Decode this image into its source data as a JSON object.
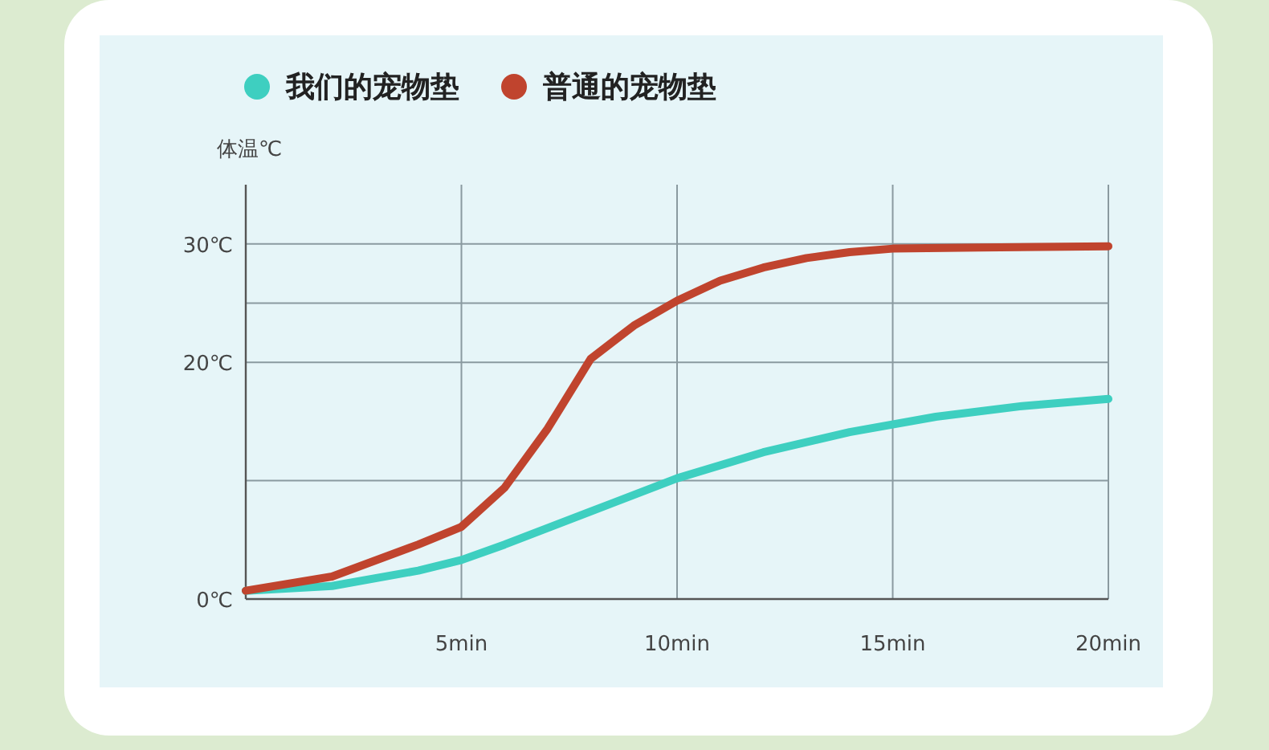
{
  "chart_data": {
    "type": "line",
    "ylabel": "体温℃",
    "x": [
      0,
      2,
      4,
      5,
      6,
      7,
      8,
      9,
      10,
      11,
      12,
      13,
      14,
      15,
      17,
      20
    ],
    "series": [
      {
        "name": "我们的宠物垫",
        "color": "#3ecfc0",
        "x": [
          0,
          2,
          4,
          5,
          6,
          8,
          10,
          12,
          14,
          16,
          18,
          20
        ],
        "values": [
          0.7,
          1.1,
          2.4,
          3.3,
          4.6,
          7.4,
          10.2,
          12.4,
          14.1,
          15.4,
          16.3,
          16.9
        ]
      },
      {
        "name": "普通的宠物垫",
        "color": "#c0442e",
        "values": [
          0.7,
          1.9,
          4.6,
          6.1,
          9.4,
          14.4,
          20.3,
          23.1,
          25.2,
          26.9,
          28.0,
          28.8,
          29.3,
          29.6,
          29.7,
          29.8
        ]
      }
    ],
    "xlim": [
      0,
      20
    ],
    "xticks": [
      {
        "value": 5,
        "label": "5min"
      },
      {
        "value": 10,
        "label": "10min"
      },
      {
        "value": 15,
        "label": "15min"
      },
      {
        "value": 20,
        "label": "20min"
      }
    ],
    "ylim": [
      0,
      35
    ],
    "yticks": [
      {
        "value": 0,
        "label": "0℃"
      },
      {
        "value": 10,
        "label": null
      },
      {
        "value": 20,
        "label": "20℃"
      },
      {
        "value": 25,
        "label": null
      },
      {
        "value": 30,
        "label": "30℃"
      }
    ],
    "grid": true,
    "legend": "top"
  }
}
